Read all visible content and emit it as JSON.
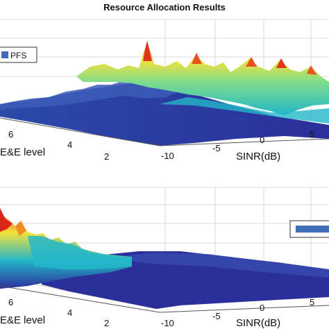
{
  "figure": {
    "title": "Resource Allocation Results"
  },
  "colors": {
    "surface_low": "#2b2f9a",
    "surface_mid": "#23b7c9",
    "surface_high": "#f4e23a",
    "surface_peak": "#d7261b",
    "legend_swatch": "#3e6fb8",
    "grid": "#c9c9c9",
    "axis": "#555555"
  },
  "chart_data": [
    {
      "type": "surface",
      "title": "",
      "legend": {
        "entries": [
          "PFS"
        ],
        "placement": "top-left"
      },
      "xlabel": "SINR(dB)",
      "ylabel": "E&E level",
      "x_ticks": [
        "-10",
        "-5",
        "0",
        "5"
      ],
      "y_ticks": [
        "6",
        "4",
        "2"
      ],
      "description_values": {
        "high_region": "SINR > 0 dB",
        "peak_z_relative": 1.0
      },
      "grid": true
    },
    {
      "type": "surface",
      "title": "",
      "legend": {
        "entries": [
          ""
        ],
        "placement": "right"
      },
      "xlabel": "SINR(dB)",
      "ylabel": "E&E level",
      "x_ticks": [
        "-10",
        "-5",
        "0",
        "5"
      ],
      "y_ticks": [
        "6",
        "4",
        "2"
      ],
      "description_values": {
        "high_region": "high E&E level, low SINR",
        "peak_z_relative": 1.0
      },
      "grid": true
    }
  ]
}
